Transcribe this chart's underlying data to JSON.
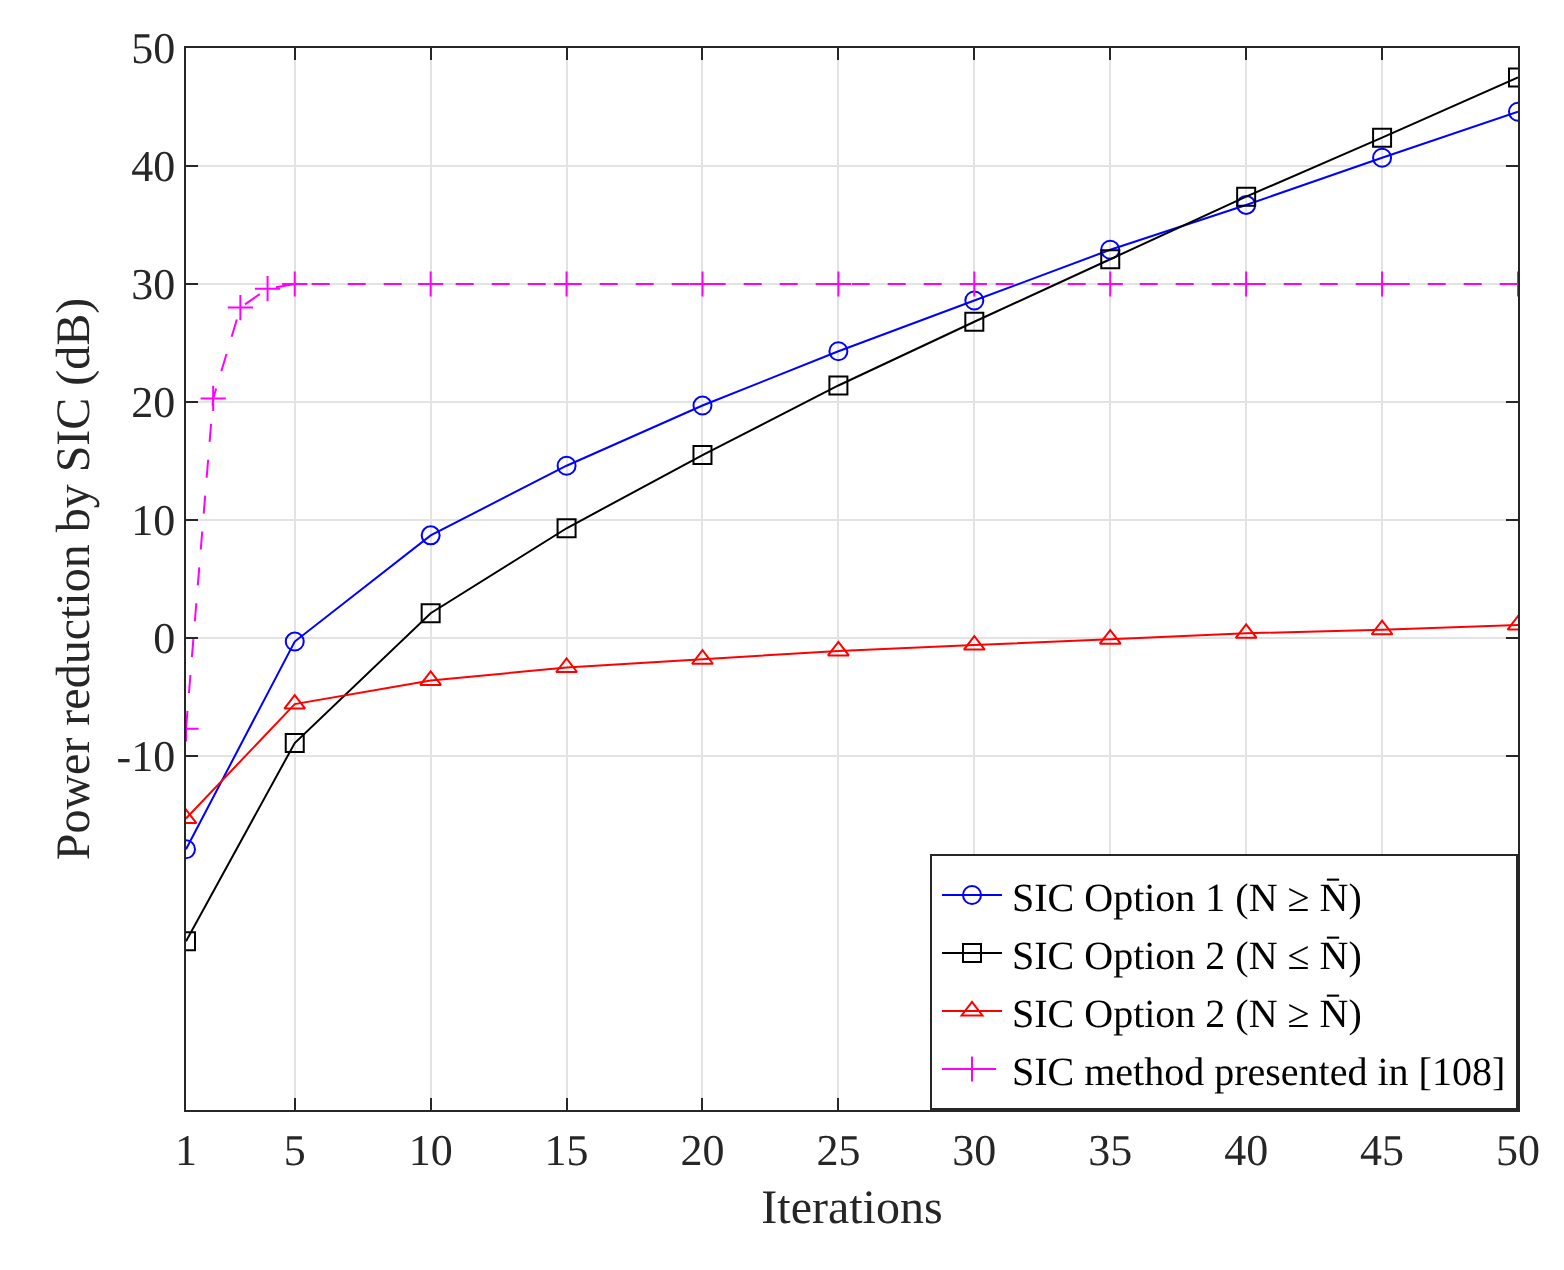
{
  "chart_data": {
    "type": "line",
    "xlabel": "Iterations",
    "ylabel": "Power reduction by SIC (dB)",
    "x": [
      1,
      5,
      10,
      15,
      20,
      25,
      30,
      35,
      40,
      45,
      50
    ],
    "series": [
      {
        "name": "SIC Option 1 (N ≥ N̄)",
        "color": "#0000ff",
        "marker": "circle",
        "line_style": "solid",
        "values": [
          -17.9,
          -0.3,
          8.7,
          14.6,
          19.7,
          24.3,
          28.6,
          32.9,
          36.7,
          40.7,
          44.6
        ]
      },
      {
        "name": "SIC Option 2 (N ≤ N̄)",
        "color": "#000000",
        "marker": "square",
        "line_style": "solid",
        "values": [
          -25.7,
          -8.9,
          2.1,
          9.3,
          15.5,
          21.4,
          26.8,
          32.1,
          37.4,
          42.4,
          47.5
        ]
      },
      {
        "name": "SIC Option 2 (N ≥ N̄)",
        "color": "#ff0000",
        "marker": "triangle",
        "line_style": "solid",
        "values": [
          -15.3,
          -5.6,
          -3.6,
          -2.5,
          -1.8,
          -1.1,
          -0.6,
          -0.1,
          0.4,
          0.7,
          1.1
        ]
      },
      {
        "name": "SIC method presented in [108]",
        "color": "#ff00ff",
        "marker": "cross",
        "line_style": "dashed",
        "x": [
          1,
          2,
          3,
          4,
          5,
          10,
          15,
          20,
          25,
          30,
          35,
          40,
          45,
          50
        ],
        "values": [
          -7.7,
          20.3,
          28.0,
          29.6,
          30,
          30,
          30,
          30,
          30,
          30,
          30,
          30,
          30,
          30
        ]
      }
    ],
    "xlim": [
      1,
      50
    ],
    "xticks": [
      1,
      5,
      10,
      15,
      20,
      25,
      30,
      35,
      40,
      45,
      50
    ],
    "ylim": [
      -40,
      50
    ],
    "yticks": [
      -10,
      0,
      10,
      20,
      30,
      40,
      50
    ],
    "grid": true,
    "legend": "bottom right"
  }
}
